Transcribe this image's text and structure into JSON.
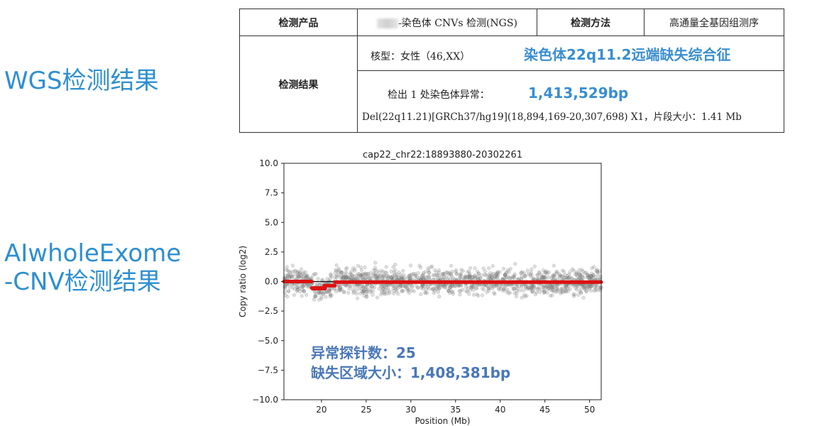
{
  "labels": {
    "wgs": "WGS检测结果",
    "exome_line1": "AIwholeExome",
    "exome_line2": "-CNV检测结果"
  },
  "report": {
    "product_header": "检测产品",
    "product_value": "-染色体 CNVs 检测(NGS)",
    "method_header": "检测方法",
    "method_value": "高通量全基因组测序",
    "result_header": "检测结果",
    "karyotype": "核型：女性（46,XX）",
    "syndrome_callout": "染色体22q11.2远端缺失综合征",
    "abnormality_label": "检出 1 处染色体异常：",
    "size_callout": "1,413,529bp",
    "detail": "Del(22q11.21)[GRCh37/hg19](18,894,169-20,307,698) X1，片段大小：1.41 Mb"
  },
  "stats": {
    "probe_count": "异常探针数：25",
    "region_size": "缺失区域大小：1,408,381bp"
  },
  "chart_data": {
    "type": "scatter",
    "title": "cap22_chr22:18893880-20302261",
    "xlabel": "Position (Mb)",
    "ylabel": "Copy ratio (log2)",
    "xlim": [
      15.8,
      51.3
    ],
    "ylim": [
      -10.0,
      10.0
    ],
    "xticks": [
      20,
      25,
      30,
      35,
      40,
      45,
      50
    ],
    "yticks": [
      -10.0,
      -7.5,
      -5.0,
      -2.5,
      0.0,
      2.5,
      5.0,
      7.5,
      10.0
    ],
    "grid": false,
    "series": [
      {
        "kind": "points",
        "color": "#888888",
        "description_range": {
          "x": [
            15.8,
            51.3
          ],
          "y": [
            -1.5,
            1.5
          ]
        }
      },
      {
        "kind": "segments",
        "color": "#dd1111",
        "segments": [
          {
            "x": [
              15.8,
              18.9
            ],
            "y": 0.0
          },
          {
            "x": [
              18.9,
              20.3
            ],
            "y": -0.55
          },
          {
            "x": [
              19.0,
              20.4
            ],
            "y": -0.6
          },
          {
            "x": [
              20.3,
              21.5
            ],
            "y": -0.35
          },
          {
            "x": [
              21.5,
              51.3
            ],
            "y": -0.05
          }
        ]
      },
      {
        "kind": "baseline",
        "color": "#111111",
        "y": 0.0
      }
    ]
  }
}
